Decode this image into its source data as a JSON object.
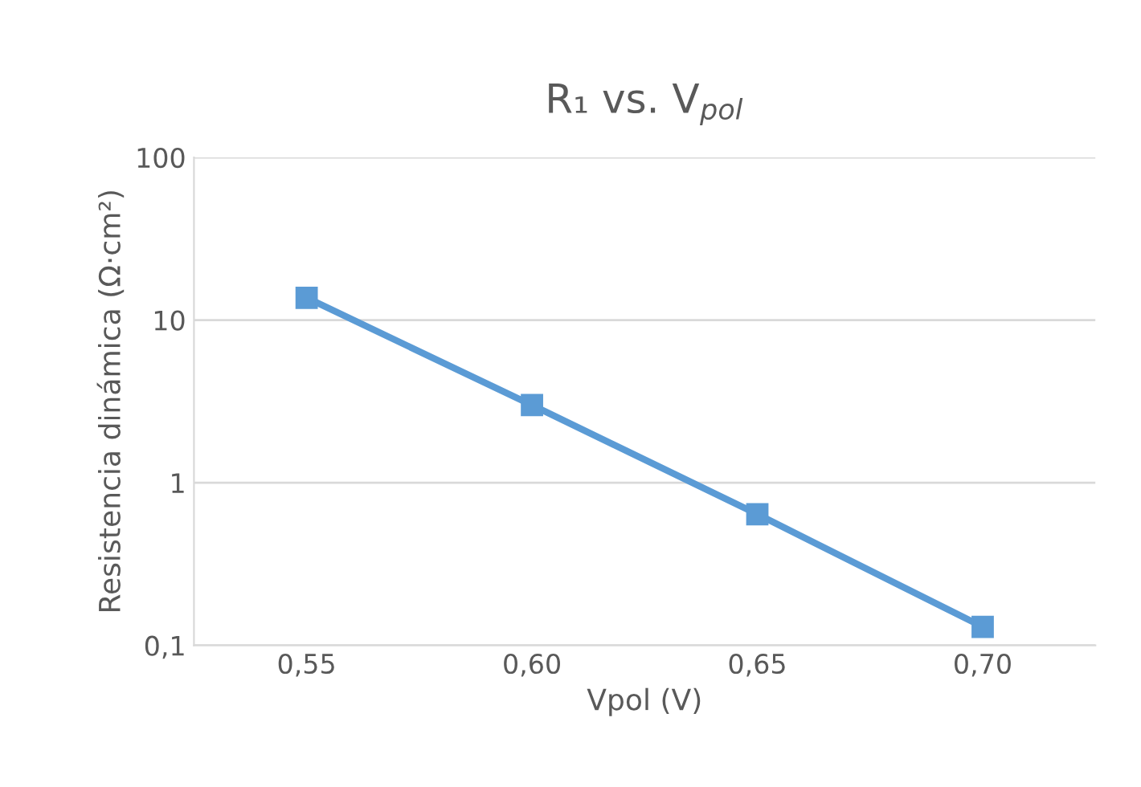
{
  "chart_data": {
    "type": "line",
    "title": "R₁ vs. V$_{pol}$",
    "xlabel": "Vpol (V)",
    "ylabel": "Resistencia dinámica (Ω·cm²)",
    "categories": [
      "0,55",
      "0,60",
      "0,65",
      "0,70"
    ],
    "series": [
      {
        "color": "#5b9bd5",
        "values": [
          13.7,
          3.0,
          0.64,
          0.13
        ]
      }
    ],
    "log": "y",
    "ylim": [
      0.1,
      100
    ],
    "yticks": [
      {
        "value": 0.1,
        "label": "0,1"
      },
      1,
      10,
      100
    ],
    "grid": "y",
    "legend": false,
    "marker": "square",
    "line_style": "solid"
  }
}
